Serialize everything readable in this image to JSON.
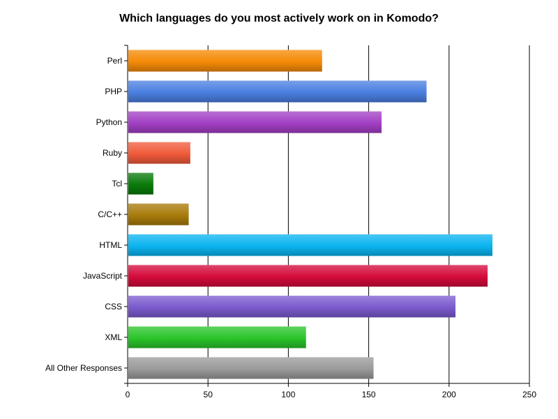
{
  "chart_data": {
    "type": "bar",
    "orientation": "horizontal",
    "title": "Which languages do you most actively work on in Komodo?",
    "xlabel": "",
    "ylabel": "",
    "xlim": [
      0,
      250
    ],
    "x_ticks": [
      0,
      50,
      100,
      150,
      200,
      250
    ],
    "grid": true,
    "categories": [
      "Perl",
      "PHP",
      "Python",
      "Ruby",
      "Tcl",
      "C/C++",
      "HTML",
      "JavaScript",
      "CSS",
      "XML",
      "All Other Responses"
    ],
    "values": [
      121,
      186,
      158,
      39,
      16,
      38,
      227,
      224,
      204,
      111,
      153
    ],
    "colors": [
      "#f58a05",
      "#4a7fe0",
      "#a23fc4",
      "#f05a3a",
      "#0a7a0a",
      "#a87a0a",
      "#0ab4f0",
      "#d40a3a",
      "#7a5acd",
      "#2ac42a",
      "#9a9a9a"
    ]
  }
}
